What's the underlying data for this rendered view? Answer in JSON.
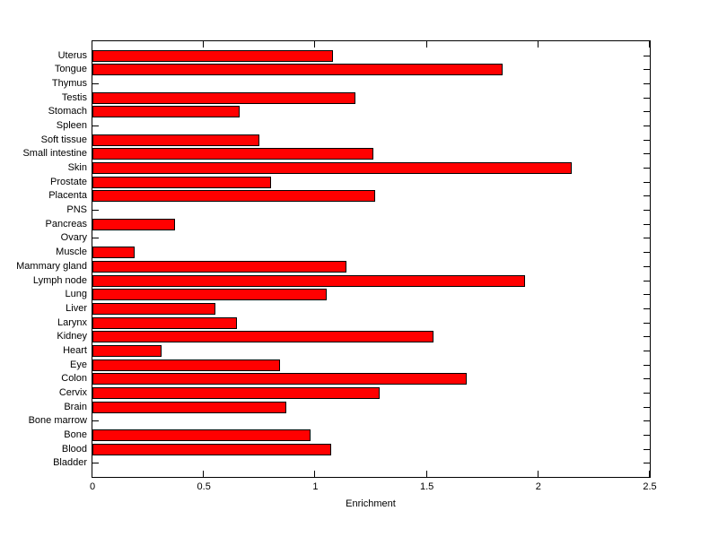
{
  "chart_data": {
    "type": "bar",
    "orientation": "horizontal",
    "title": "",
    "xlabel": "Enrichment",
    "ylabel": "",
    "xlim": [
      0,
      2.5
    ],
    "xticks": [
      0,
      0.5,
      1,
      1.5,
      2,
      2.5
    ],
    "xtick_labels": [
      "0",
      "0.5",
      "1",
      "1.5",
      "2",
      "2.5"
    ],
    "grid": false,
    "legend": "none",
    "bar_color": "#ff0000",
    "bar_edge_color": "#000000",
    "background_color": "#ffffff",
    "axis_color": "#000000",
    "categories": [
      "Uterus",
      "Tongue",
      "Thymus",
      "Testis",
      "Stomach",
      "Spleen",
      "Soft tissue",
      "Small intestine",
      "Skin",
      "Prostate",
      "Placenta",
      "PNS",
      "Pancreas",
      "Ovary",
      "Muscle",
      "Mammary gland",
      "Lymph node",
      "Lung",
      "Liver",
      "Larynx",
      "Kidney",
      "Heart",
      "Eye",
      "Colon",
      "Cervix",
      "Brain",
      "Bone marrow",
      "Bone",
      "Blood",
      "Bladder"
    ],
    "values": [
      1.08,
      1.84,
      0,
      1.18,
      0.66,
      0,
      0.75,
      1.26,
      2.15,
      0.8,
      1.27,
      0,
      0.37,
      0,
      0.19,
      1.14,
      1.94,
      1.05,
      0.55,
      0.65,
      1.53,
      0.31,
      0.84,
      1.68,
      1.29,
      0.87,
      0,
      0.98,
      1.07,
      0
    ]
  }
}
